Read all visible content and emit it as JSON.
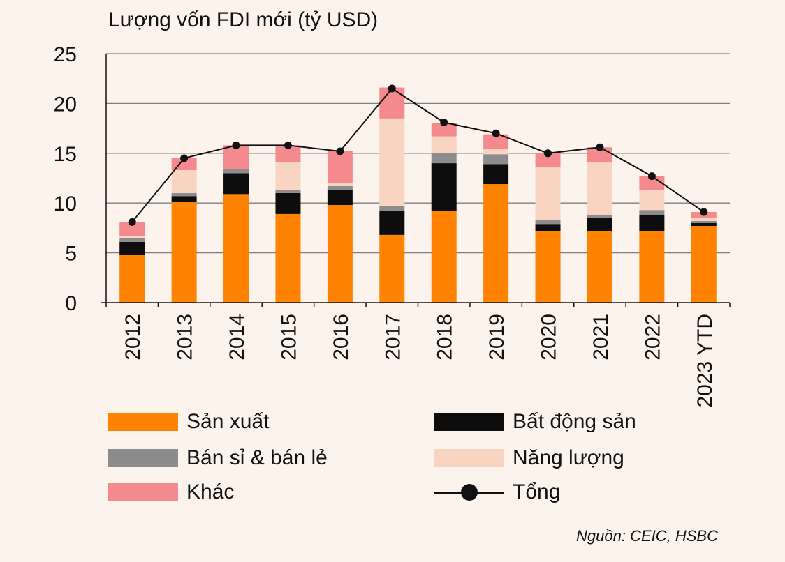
{
  "chart_data": {
    "type": "bar",
    "stacked": true,
    "title": "Lượng vốn FDI mới (tỷ USD)",
    "source": "Nguồn: CEIC, HSBC",
    "categories": [
      "2012",
      "2013",
      "2014",
      "2015",
      "2016",
      "2017",
      "2018",
      "2019",
      "2020",
      "2021",
      "2022",
      "2023 YTD"
    ],
    "ylim": [
      0,
      25
    ],
    "yticks": [
      "0",
      "5",
      "10",
      "15",
      "20",
      "25"
    ],
    "grid": true,
    "series": [
      {
        "name": "Sản xuất",
        "color": "#ff8200",
        "values": [
          4.8,
          10.1,
          10.9,
          8.9,
          9.8,
          6.8,
          9.2,
          11.9,
          7.2,
          7.2,
          7.2,
          7.7
        ]
      },
      {
        "name": "Bất động sản",
        "color": "#0d0d0d",
        "values": [
          1.3,
          0.6,
          2.1,
          2.1,
          1.5,
          2.4,
          4.8,
          2.0,
          0.7,
          1.3,
          1.6,
          0.3
        ]
      },
      {
        "name": "Bán sỉ & bán lẻ",
        "color": "#8c8c8c",
        "values": [
          0.4,
          0.3,
          0.4,
          0.3,
          0.4,
          0.5,
          1.0,
          1.0,
          0.4,
          0.3,
          0.5,
          0.2
        ]
      },
      {
        "name": "Năng lượng",
        "color": "#f9d4c0",
        "values": [
          0.2,
          2.3,
          0.0,
          2.8,
          0.3,
          8.8,
          1.7,
          0.5,
          5.3,
          5.3,
          2.0,
          0.3
        ]
      },
      {
        "name": "Khác",
        "color": "#f58a8e",
        "values": [
          1.4,
          1.2,
          2.4,
          1.7,
          3.2,
          3.1,
          1.3,
          1.5,
          1.4,
          1.5,
          1.4,
          0.6
        ]
      }
    ],
    "line": {
      "name": "Tổng",
      "color": "#111111",
      "values": [
        8.1,
        14.5,
        15.8,
        15.8,
        15.2,
        21.5,
        18.1,
        17.0,
        15.0,
        15.6,
        12.7,
        9.1
      ]
    },
    "legend": {
      "position": "bottom",
      "items": [
        {
          "label": "Sản xuất",
          "color": "#ff8200",
          "kind": "swatch"
        },
        {
          "label": "Bất động sản",
          "color": "#0d0d0d",
          "kind": "swatch"
        },
        {
          "label": "Bán sỉ & bán lẻ",
          "color": "#8c8c8c",
          "kind": "swatch"
        },
        {
          "label": "Năng lượng",
          "color": "#f9d4c0",
          "kind": "swatch"
        },
        {
          "label": "Khác",
          "color": "#f58a8e",
          "kind": "swatch"
        },
        {
          "label": "Tổng",
          "color": "#111111",
          "kind": "line-marker"
        }
      ]
    }
  }
}
